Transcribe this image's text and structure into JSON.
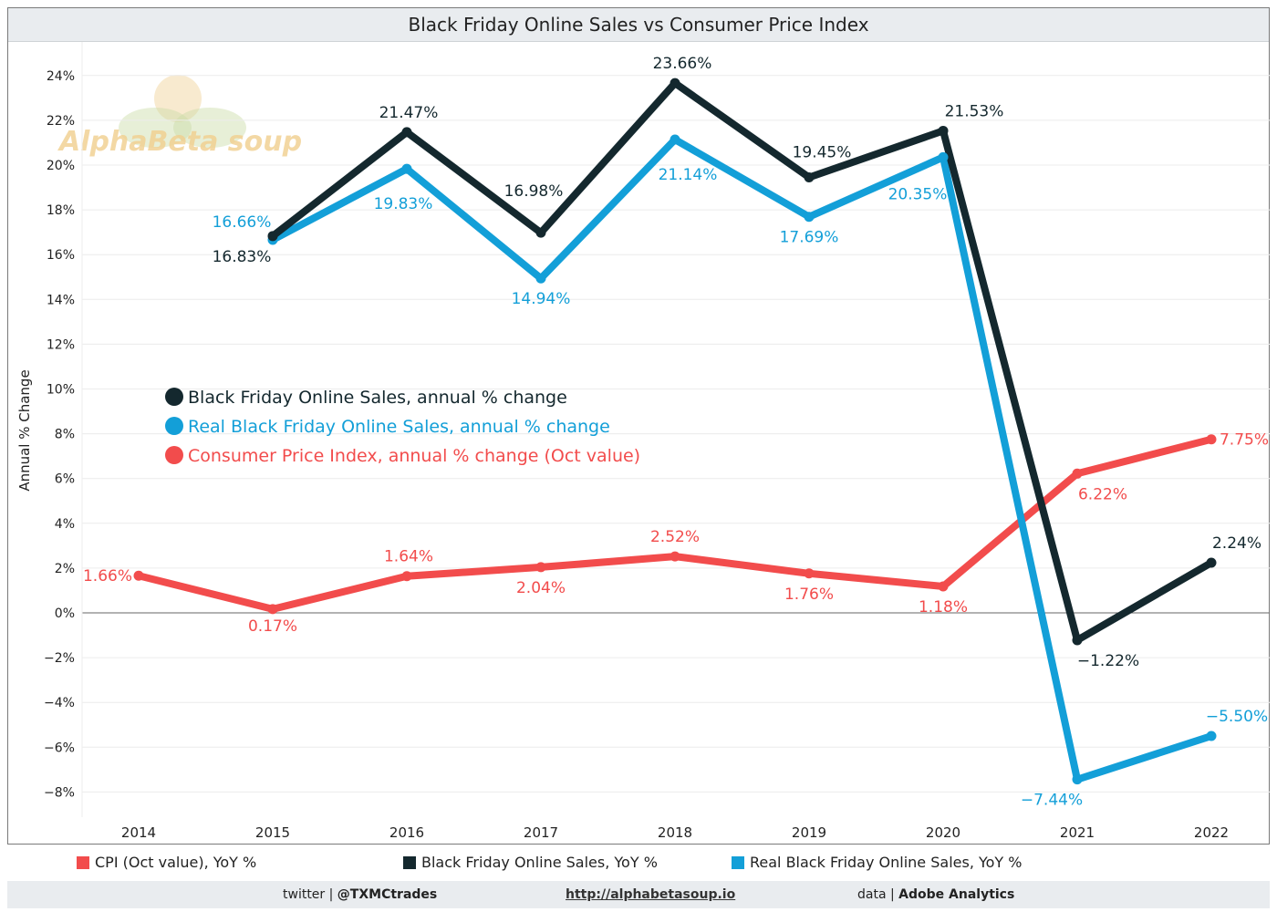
{
  "chart_data": {
    "type": "line",
    "title": "Black Friday Online Sales vs Consumer Price Index",
    "ylabel": "Annual % Change",
    "xlabel": "",
    "ylim": [
      -9,
      25
    ],
    "yticks": [
      -8,
      -6,
      -4,
      -2,
      0,
      2,
      4,
      6,
      8,
      10,
      12,
      14,
      16,
      18,
      20,
      22,
      24
    ],
    "ytick_labels": [
      "−8%",
      "−6%",
      "−4%",
      "−2%",
      "0%",
      "2%",
      "4%",
      "6%",
      "8%",
      "10%",
      "12%",
      "14%",
      "16%",
      "18%",
      "20%",
      "22%",
      "24%"
    ],
    "categories": [
      "2014",
      "2015",
      "2016",
      "2017",
      "2018",
      "2019",
      "2020",
      "2021",
      "2022"
    ],
    "grid": "horizontal",
    "series": [
      {
        "name": "Consumer Price Index, annual % change (Oct value)",
        "color": "#f24c4c",
        "values": [
          1.66,
          0.17,
          1.64,
          2.04,
          2.52,
          1.76,
          1.18,
          6.22,
          7.75
        ],
        "labels": [
          "1.66%",
          "0.17%",
          "1.64%",
          "2.04%",
          "2.52%",
          "1.76%",
          "1.18%",
          "6.22%",
          "7.75%"
        ]
      },
      {
        "name": "Real Black Friday Online Sales, annual % change",
        "color": "#139fd8",
        "values": [
          null,
          16.66,
          19.83,
          14.94,
          21.14,
          17.69,
          20.35,
          -7.44,
          -5.5
        ],
        "labels": [
          "",
          "16.66%",
          "19.83%",
          "14.94%",
          "21.14%",
          "17.69%",
          "20.35%",
          "−7.44%",
          "−5.50%"
        ]
      },
      {
        "name": "Black Friday Online Sales, annual % change",
        "color": "#14282e",
        "values": [
          null,
          16.83,
          21.47,
          16.98,
          23.66,
          19.45,
          21.53,
          -1.22,
          2.24
        ],
        "labels": [
          "",
          "16.83%",
          "21.47%",
          "16.98%",
          "23.66%",
          "19.45%",
          "21.53%",
          "−1.22%",
          "2.24%"
        ]
      }
    ],
    "legend_inside": [
      {
        "label": "Black Friday Online Sales, annual % change",
        "color": "#14282e"
      },
      {
        "label": "Real Black Friday Online Sales, annual % change",
        "color": "#139fd8"
      },
      {
        "label": "Consumer Price Index, annual % change (Oct value)",
        "color": "#f24c4c"
      }
    ],
    "legend_bottom": [
      {
        "label": "CPI (Oct value), YoY %",
        "color": "#f24c4c"
      },
      {
        "label": "Black Friday Online Sales, YoY %",
        "color": "#14282e"
      },
      {
        "label": "Real Black Friday Online Sales, YoY %",
        "color": "#139fd8"
      }
    ],
    "watermark": "AlphaBeta soup"
  },
  "footer": {
    "twitter_prefix": "twitter | ",
    "twitter_handle": "@TXMCtrades",
    "url": "http://alphabetasoup.io",
    "data_prefix": "data | ",
    "data_source": "Adobe Analytics"
  }
}
